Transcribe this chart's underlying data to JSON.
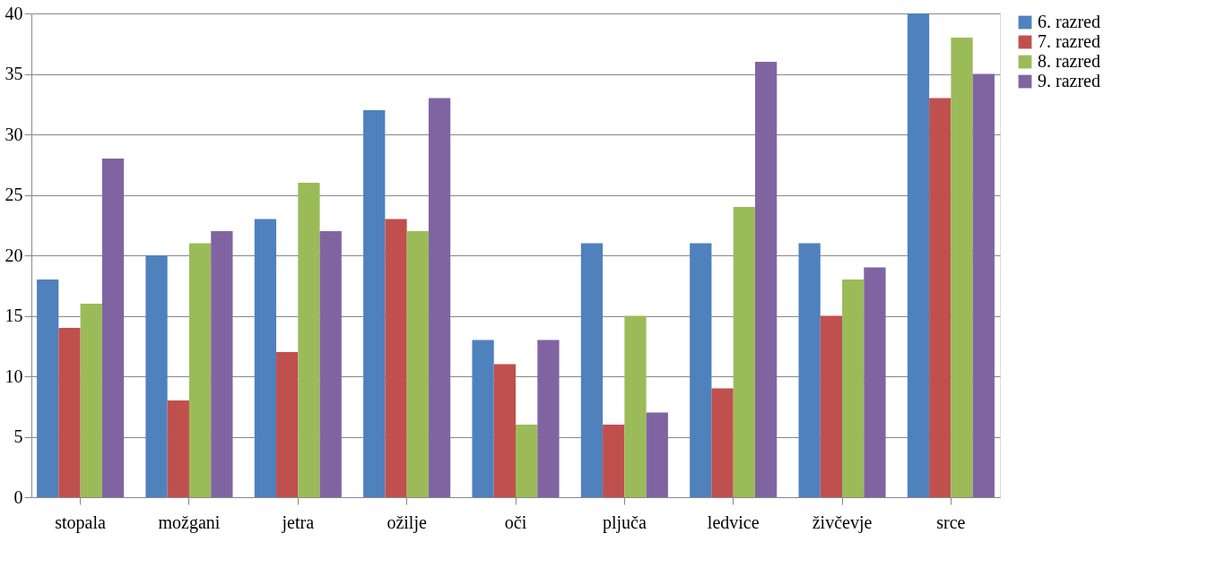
{
  "chart_data": {
    "type": "bar",
    "categories": [
      "stopala",
      "možgani",
      "jetra",
      "ožilje",
      "oči",
      "pljuča",
      "ledvice",
      "živčevje",
      "srce"
    ],
    "series": [
      {
        "name": "6. razred",
        "color": "#4f81bd",
        "values": [
          18,
          20,
          23,
          32,
          13,
          21,
          21,
          21,
          40
        ]
      },
      {
        "name": "7. razred",
        "color": "#c0504d",
        "values": [
          14,
          8,
          12,
          23,
          11,
          6,
          9,
          15,
          33
        ]
      },
      {
        "name": "8. razred",
        "color": "#9bbb59",
        "values": [
          16,
          21,
          26,
          22,
          6,
          15,
          24,
          18,
          38
        ]
      },
      {
        "name": "9. razred",
        "color": "#8064a2",
        "values": [
          28,
          22,
          22,
          33,
          13,
          7,
          36,
          19,
          35
        ]
      }
    ],
    "ylim": [
      0,
      40
    ],
    "yticks": [
      0,
      5,
      10,
      15,
      20,
      25,
      30,
      35,
      40
    ],
    "grid": "y",
    "legend": "right"
  }
}
